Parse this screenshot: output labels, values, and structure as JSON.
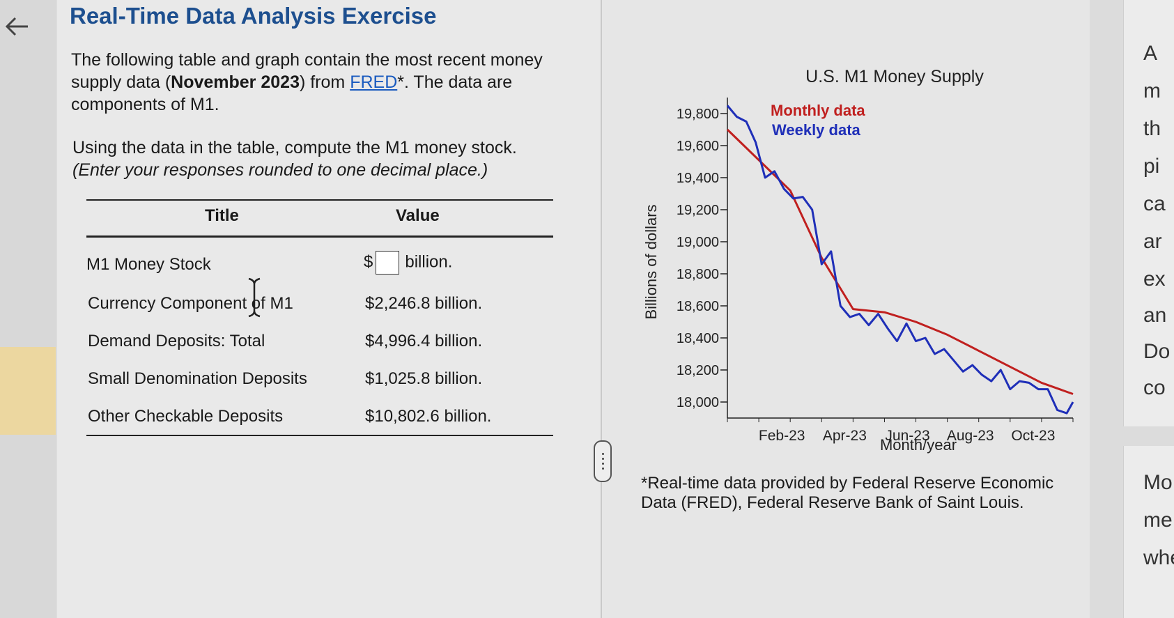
{
  "exercise": {
    "title": "Real-Time Data Analysis Exercise",
    "intro_pre": "The following table and graph contain the most recent money supply data (",
    "intro_date": "November 2023",
    "intro_mid": ") from ",
    "intro_link": "FRED",
    "intro_post": "*. The data are components of M1.",
    "instruction": "Using the data in the table, compute the M1 money stock.",
    "instruction_note": "(Enter your responses rounded to one decimal place.)"
  },
  "table": {
    "headers": [
      "Title",
      "Value"
    ],
    "rows": [
      {
        "title": "M1 Money Stock",
        "prefix": "$",
        "value": "",
        "suffix": "billion."
      },
      {
        "title": "Currency Component of M1",
        "value": "$2,246.8 billion."
      },
      {
        "title": "Demand Deposits: Total",
        "value": "$4,996.4 billion."
      },
      {
        "title": "Small Denomination Deposits",
        "value": "$1,025.8 billion."
      },
      {
        "title": "Other Checkable Deposits",
        "value": "$10,802.6 billion."
      }
    ]
  },
  "icons": {
    "back": "arrow-left-icon",
    "splitter": "drag-handle-icon",
    "cursor": "text-cursor-icon"
  },
  "colors": {
    "title": "#1d4f8f",
    "monthly": "#c0201f",
    "weekly": "#1f2fb8",
    "highlight": "#ecd7a0"
  },
  "footnote": "*Real-time data provided by Federal Reserve Economic Data (FRED), Federal Reserve Bank of Saint Louis.",
  "side_panel": {
    "words": [
      "A",
      "m",
      "th",
      "pi",
      "ca",
      "ar",
      "ex",
      "an",
      "Do",
      "co"
    ],
    "words2": [
      "Mo",
      "me",
      "whe"
    ]
  },
  "chart_data": {
    "type": "line",
    "title": "U.S. M1 Money Supply",
    "xlabel": "Month/year",
    "ylabel": "Billions of dollars",
    "x_ticks": [
      "Feb-23",
      "Apr-23",
      "Jun-23",
      "Aug-23",
      "Oct-23"
    ],
    "y_ticks": [
      "19,800",
      "19,600",
      "19,400",
      "19,200",
      "19,000",
      "18,800",
      "18,600",
      "18,400",
      "18,200",
      "18,000"
    ],
    "ylim": [
      17900,
      19900
    ],
    "xlim": [
      0,
      11
    ],
    "legend": [
      "Monthly data",
      "Weekly data"
    ],
    "legend_position": "top-left",
    "series": [
      {
        "name": "Monthly data",
        "x": [
          0,
          2,
          3,
          4,
          5,
          6,
          7,
          8,
          9,
          10,
          11
        ],
        "y": [
          19700,
          19320,
          18900,
          18580,
          18560,
          18500,
          18420,
          18320,
          18220,
          18120,
          18050
        ]
      },
      {
        "name": "Weekly data",
        "x": [
          0,
          0.3,
          0.6,
          0.9,
          1.2,
          1.5,
          1.8,
          2.1,
          2.4,
          2.7,
          3.0,
          3.3,
          3.6,
          3.9,
          4.2,
          4.5,
          4.8,
          5.1,
          5.4,
          5.7,
          6.0,
          6.3,
          6.6,
          6.9,
          7.2,
          7.5,
          7.8,
          8.1,
          8.4,
          8.7,
          9.0,
          9.3,
          9.6,
          9.9,
          10.2,
          10.5,
          10.8,
          11.0
        ],
        "y": [
          19850,
          19780,
          19750,
          19620,
          19400,
          19440,
          19330,
          19270,
          19280,
          19200,
          18860,
          18940,
          18600,
          18530,
          18550,
          18480,
          18550,
          18460,
          18380,
          18490,
          18380,
          18400,
          18300,
          18330,
          18260,
          18190,
          18230,
          18170,
          18130,
          18200,
          18080,
          18130,
          18120,
          18080,
          18080,
          17950,
          17930,
          18000
        ]
      }
    ]
  }
}
